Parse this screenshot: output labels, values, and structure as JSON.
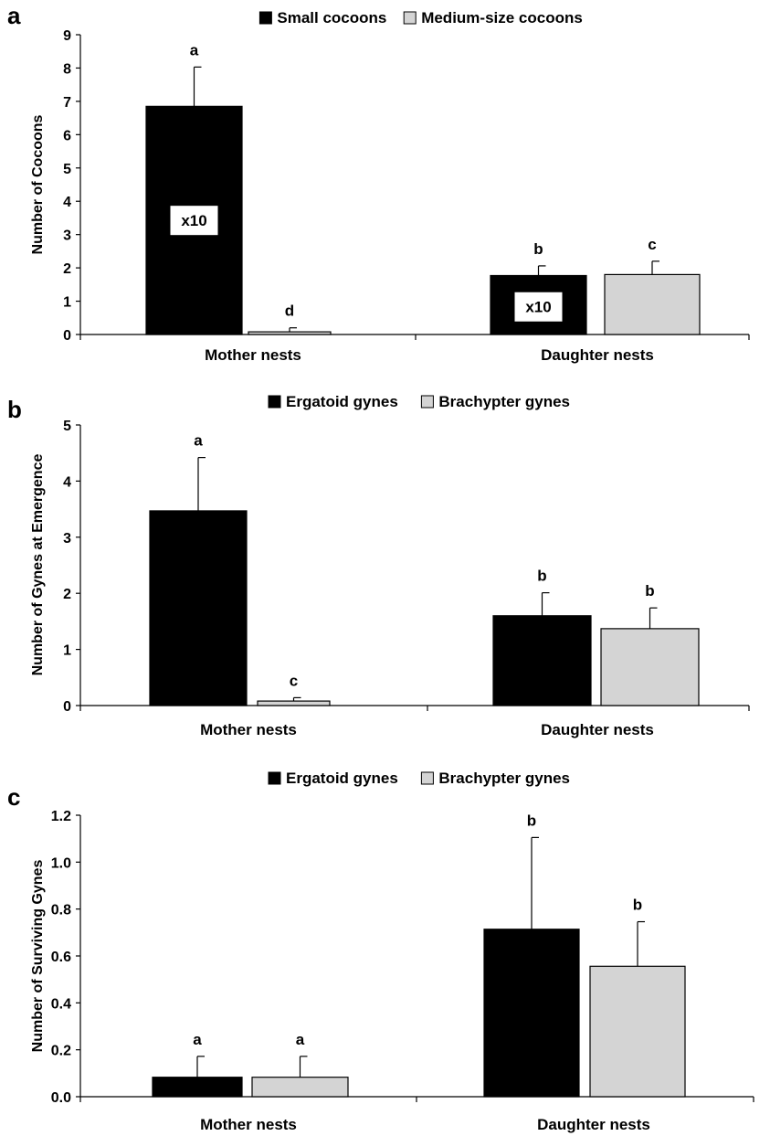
{
  "chart_data": [
    {
      "panel": "a",
      "type": "bar",
      "categories": [
        "Mother nests",
        "Daughter nests"
      ],
      "legend": [
        "Small cocoons",
        "Medium-size cocoons"
      ],
      "ylabel": "Number of Cocoons",
      "ylim": [
        0,
        9
      ],
      "yticks": [
        "0",
        "1",
        "2",
        "3",
        "4",
        "5",
        "6",
        "7",
        "8",
        "9"
      ],
      "colors": [
        "#000000",
        "#d4d4d4"
      ],
      "series": [
        {
          "name": "Small cocoons",
          "values": [
            6.85,
            1.77
          ],
          "errors": [
            1.18,
            0.29
          ],
          "sig": [
            "a",
            "b"
          ],
          "annotations": [
            "x10",
            "x10"
          ]
        },
        {
          "name": "Medium-size cocoons",
          "values": [
            0.08,
            1.8
          ],
          "errors": [
            0.12,
            0.4
          ],
          "sig": [
            "d",
            "c"
          ],
          "annotations": [
            "",
            ""
          ]
        }
      ]
    },
    {
      "panel": "b",
      "type": "bar",
      "categories": [
        "Mother nests",
        "Daughter nests"
      ],
      "legend": [
        "Ergatoid gynes",
        "Brachypter gynes"
      ],
      "ylabel": "Number of Gynes at Emergence",
      "ylim": [
        0,
        5
      ],
      "yticks": [
        "0",
        "1",
        "2",
        "3",
        "4",
        "5"
      ],
      "colors": [
        "#000000",
        "#d4d4d4"
      ],
      "series": [
        {
          "name": "Ergatoid gynes",
          "values": [
            3.47,
            1.6
          ],
          "errors": [
            0.95,
            0.41
          ],
          "sig": [
            "a",
            "b"
          ],
          "annotations": [
            "",
            ""
          ]
        },
        {
          "name": "Brachypter gynes",
          "values": [
            0.08,
            1.37
          ],
          "errors": [
            0.06,
            0.37
          ],
          "sig": [
            "c",
            "b"
          ],
          "annotations": [
            "",
            ""
          ]
        }
      ]
    },
    {
      "panel": "c",
      "type": "bar",
      "categories": [
        "Mother nests",
        "Daughter nests"
      ],
      "legend": [
        "Ergatoid gynes",
        "Brachypter gynes"
      ],
      "ylabel": "Number of Surviving Gynes",
      "ylim": [
        0,
        1.2
      ],
      "yticks": [
        "0.0",
        "0.2",
        "0.4",
        "0.6",
        "0.8",
        "1.0",
        "1.2"
      ],
      "colors": [
        "#000000",
        "#d4d4d4"
      ],
      "series": [
        {
          "name": "Ergatoid gynes",
          "values": [
            0.083,
            0.714
          ],
          "errors": [
            0.089,
            0.391
          ],
          "sig": [
            "a",
            "b"
          ],
          "annotations": [
            "",
            ""
          ]
        },
        {
          "name": "Brachypter gynes",
          "values": [
            0.083,
            0.556
          ],
          "errors": [
            0.089,
            0.19
          ],
          "sig": [
            "a",
            "b"
          ],
          "annotations": [
            "",
            ""
          ]
        }
      ]
    }
  ]
}
